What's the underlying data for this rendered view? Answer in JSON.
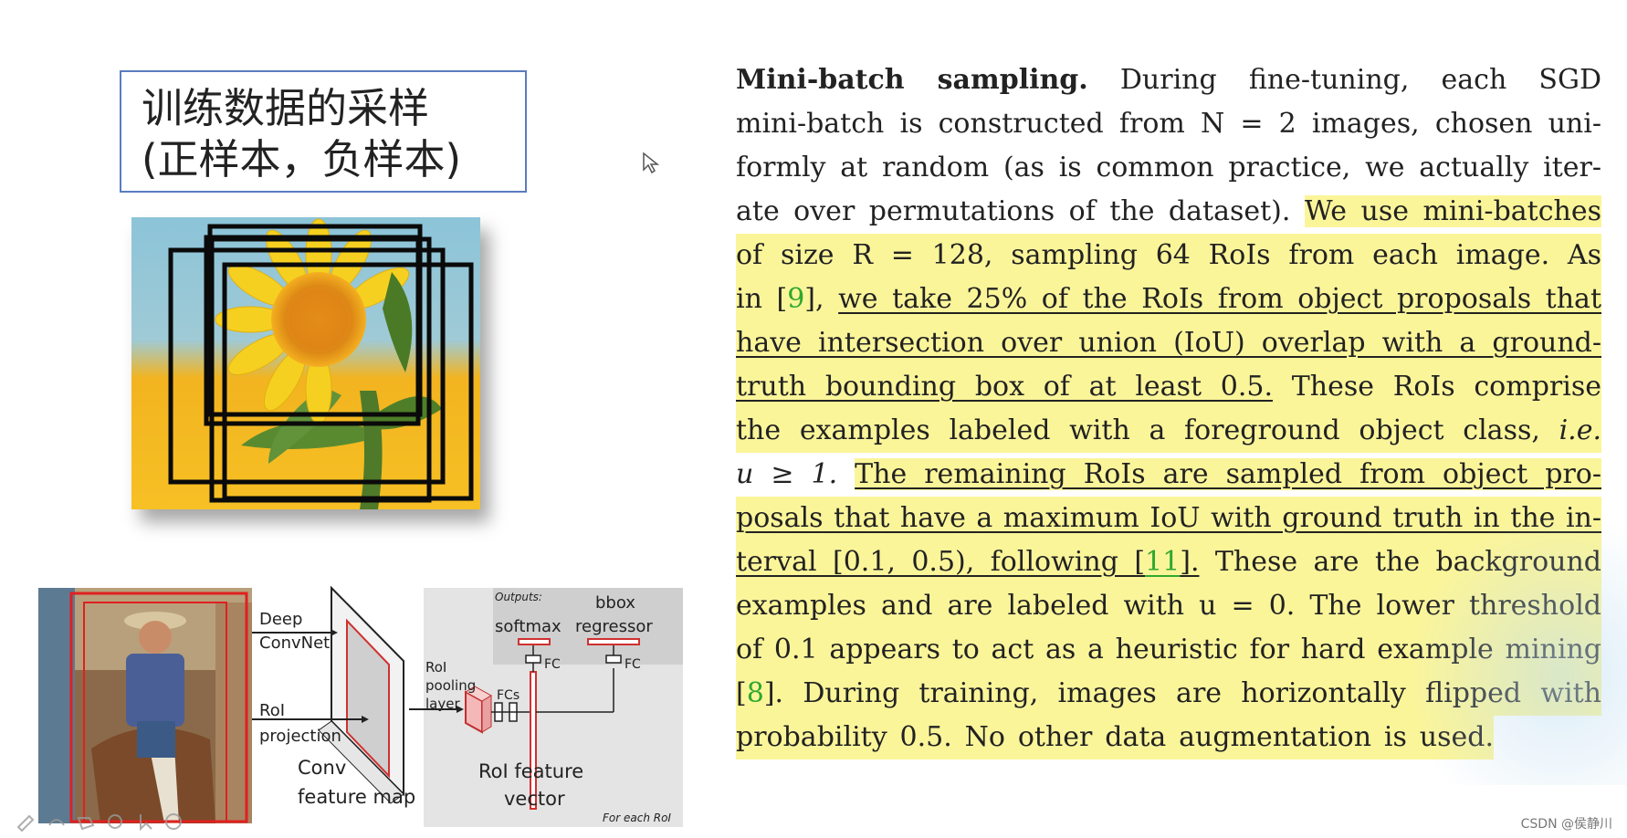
{
  "slide_title": {
    "line1": "训练数据的采样",
    "line2": "(正样本，负样本)"
  },
  "figure": {
    "labels": {
      "deep_convnet_1": "Deep",
      "deep_convnet_2": "ConvNet",
      "roi_projection_1": "RoI",
      "roi_projection_2": "projection",
      "conv_feature_map_1": "Conv",
      "conv_feature_map_2": "feature map",
      "roi_pooling_1": "RoI",
      "roi_pooling_2": "pooling",
      "roi_pooling_3": "layer",
      "fcs": "FCs",
      "roi_feature_vector_1": "RoI feature",
      "roi_feature_vector_2": "vector",
      "outputs": "Outputs:",
      "softmax": "softmax",
      "bbox_regressor_1": "bbox",
      "bbox_regressor_2": "regressor",
      "fc_left": "FC",
      "fc_right": "FC",
      "for_each_roi": "For each RoI"
    }
  },
  "paper": {
    "l1_heading": "Mini-batch sampling.",
    "l1_rest": "During fine-tuning, each SGD",
    "l2": "mini-batch is constructed from N = 2 images, chosen uni-",
    "l3": "formly at random (as is common practice, we actually iter-",
    "l4_a": "ate over permutations of the dataset).",
    "l4_b": "We use mini-batches",
    "l5": "of size R = 128, sampling 64 RoIs from each image. As",
    "l6_a": "in [",
    "l6_cite": "9",
    "l6_b": "], ",
    "l6_c": "we take 25% of the RoIs from object proposals that",
    "l7": "have intersection over union (IoU) overlap with a ground-",
    "l8_a": "truth bounding box of at least 0.5.",
    "l8_b": "These RoIs comprise",
    "l9_a": "the examples labeled with a foreground object class, ",
    "l9_b": "i.e.",
    "l10_a": "u ≥ 1. ",
    "l10_b": "The remaining RoIs are sampled from object pro-",
    "l11": "posals that have a maximum IoU with ground truth in the in-",
    "l12_a": "terval [0.1, 0.5), following [",
    "l12_cite": "11",
    "l12_b": "].",
    "l12_c": "These are the background",
    "l13": "examples and are labeled with u = 0. The lower threshold",
    "l14": "of 0.1 appears to act as a heuristic for hard example mining",
    "l15_a": "[",
    "l15_cite": "8",
    "l15_b": "].",
    "l15_c": "During training, images are horizontally flipped with",
    "l16": "probability 0.5. No other data augmentation is used."
  },
  "watermark": "CSDN @侯静川"
}
